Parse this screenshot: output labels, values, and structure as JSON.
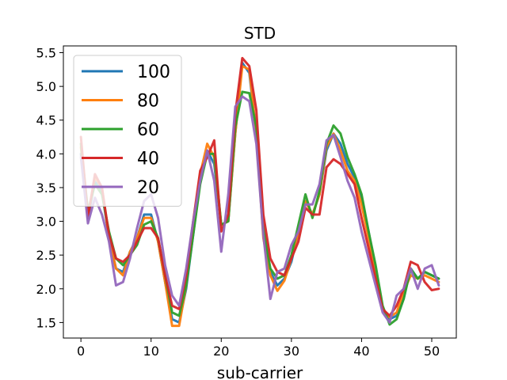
{
  "chart_data": {
    "type": "line",
    "title": "STD",
    "xlabel": "sub-carrier",
    "ylabel": "",
    "xlim": [
      -2.5,
      53.5
    ],
    "ylim": [
      1.27,
      5.6
    ],
    "xticks": [
      0,
      10,
      20,
      30,
      40,
      50
    ],
    "yticks": [
      1.5,
      2.0,
      2.5,
      3.0,
      3.5,
      4.0,
      4.5,
      5.0,
      5.5
    ],
    "ytick_labels": [
      "1.5",
      "2.0",
      "2.5",
      "3.0",
      "3.5",
      "4.0",
      "4.5",
      "5.0",
      "5.5"
    ],
    "grid": false,
    "legend_position": "top-left",
    "x": [
      0,
      1,
      2,
      3,
      4,
      5,
      6,
      7,
      8,
      9,
      10,
      11,
      12,
      13,
      14,
      15,
      16,
      17,
      18,
      19,
      20,
      21,
      22,
      23,
      24,
      25,
      26,
      27,
      28,
      29,
      30,
      31,
      32,
      33,
      34,
      35,
      36,
      37,
      38,
      39,
      40,
      41,
      42,
      43,
      44,
      45,
      46,
      47,
      48,
      49,
      50,
      51
    ],
    "series": [
      {
        "name": "100",
        "color": "#1f77b4",
        "values": [
          4.0,
          3.05,
          3.6,
          3.45,
          2.75,
          2.3,
          2.25,
          2.55,
          2.75,
          3.1,
          3.1,
          2.7,
          2.1,
          1.55,
          1.5,
          2.0,
          2.8,
          3.6,
          4.05,
          3.85,
          2.95,
          3.0,
          4.3,
          5.35,
          5.2,
          4.3,
          2.8,
          2.25,
          2.05,
          2.15,
          2.4,
          2.85,
          3.3,
          3.1,
          3.4,
          4.05,
          4.3,
          4.15,
          3.85,
          3.65,
          3.35,
          2.85,
          2.25,
          1.7,
          1.55,
          1.6,
          1.85,
          2.3,
          2.15,
          2.25,
          2.2,
          2.15
        ]
      },
      {
        "name": "80",
        "color": "#ff7f0e",
        "values": [
          4.1,
          3.1,
          3.65,
          3.5,
          2.75,
          2.3,
          2.2,
          2.55,
          2.75,
          3.05,
          3.05,
          2.7,
          2.1,
          1.45,
          1.45,
          2.05,
          2.85,
          3.7,
          4.15,
          3.95,
          2.95,
          3.0,
          4.3,
          5.3,
          5.25,
          4.3,
          2.75,
          2.2,
          1.97,
          2.12,
          2.45,
          2.85,
          3.3,
          3.1,
          3.4,
          4.1,
          4.3,
          4.05,
          3.75,
          3.6,
          3.25,
          2.75,
          2.2,
          1.7,
          1.58,
          1.65,
          1.95,
          2.2,
          2.15,
          2.2,
          2.15,
          2.1
        ]
      },
      {
        "name": "60",
        "color": "#2ca02c",
        "values": [
          4.15,
          3.15,
          3.55,
          3.4,
          2.85,
          2.45,
          2.35,
          2.5,
          2.65,
          2.95,
          3.0,
          2.75,
          2.2,
          1.65,
          1.6,
          2.05,
          2.8,
          3.55,
          4.0,
          4.0,
          2.95,
          3.0,
          4.4,
          4.92,
          4.9,
          4.4,
          2.9,
          2.3,
          2.15,
          2.2,
          2.5,
          2.95,
          3.4,
          3.05,
          3.45,
          4.15,
          4.42,
          4.3,
          3.95,
          3.7,
          3.4,
          2.85,
          2.35,
          1.75,
          1.47,
          1.55,
          1.85,
          2.3,
          2.15,
          2.25,
          2.2,
          2.15
        ]
      },
      {
        "name": "40",
        "color": "#d62728",
        "values": [
          4.25,
          3.05,
          3.7,
          3.5,
          2.8,
          2.45,
          2.4,
          2.5,
          2.7,
          2.9,
          2.9,
          2.75,
          2.2,
          1.75,
          1.7,
          2.2,
          3.0,
          3.75,
          3.95,
          4.2,
          2.85,
          3.1,
          4.6,
          5.42,
          5.3,
          4.65,
          3.1,
          2.45,
          2.25,
          2.2,
          2.45,
          2.7,
          3.2,
          3.1,
          3.1,
          3.8,
          3.92,
          3.85,
          3.7,
          3.55,
          3.05,
          2.6,
          2.15,
          1.7,
          1.6,
          1.75,
          2.0,
          2.4,
          2.35,
          2.1,
          1.98,
          2.0
        ]
      },
      {
        "name": "20",
        "color": "#9467bd",
        "values": [
          3.95,
          2.97,
          3.35,
          3.1,
          2.7,
          2.05,
          2.1,
          2.45,
          2.9,
          3.3,
          3.4,
          3.05,
          2.35,
          1.9,
          1.75,
          2.3,
          3.0,
          3.6,
          4.05,
          3.6,
          2.55,
          3.4,
          4.7,
          4.85,
          4.78,
          4.15,
          2.8,
          1.85,
          2.25,
          2.3,
          2.65,
          2.85,
          3.25,
          3.25,
          3.55,
          4.2,
          4.28,
          3.95,
          3.6,
          3.35,
          2.85,
          2.45,
          2.05,
          1.65,
          1.5,
          1.9,
          2.0,
          2.3,
          2.0,
          2.3,
          2.35,
          2.05
        ]
      }
    ]
  }
}
